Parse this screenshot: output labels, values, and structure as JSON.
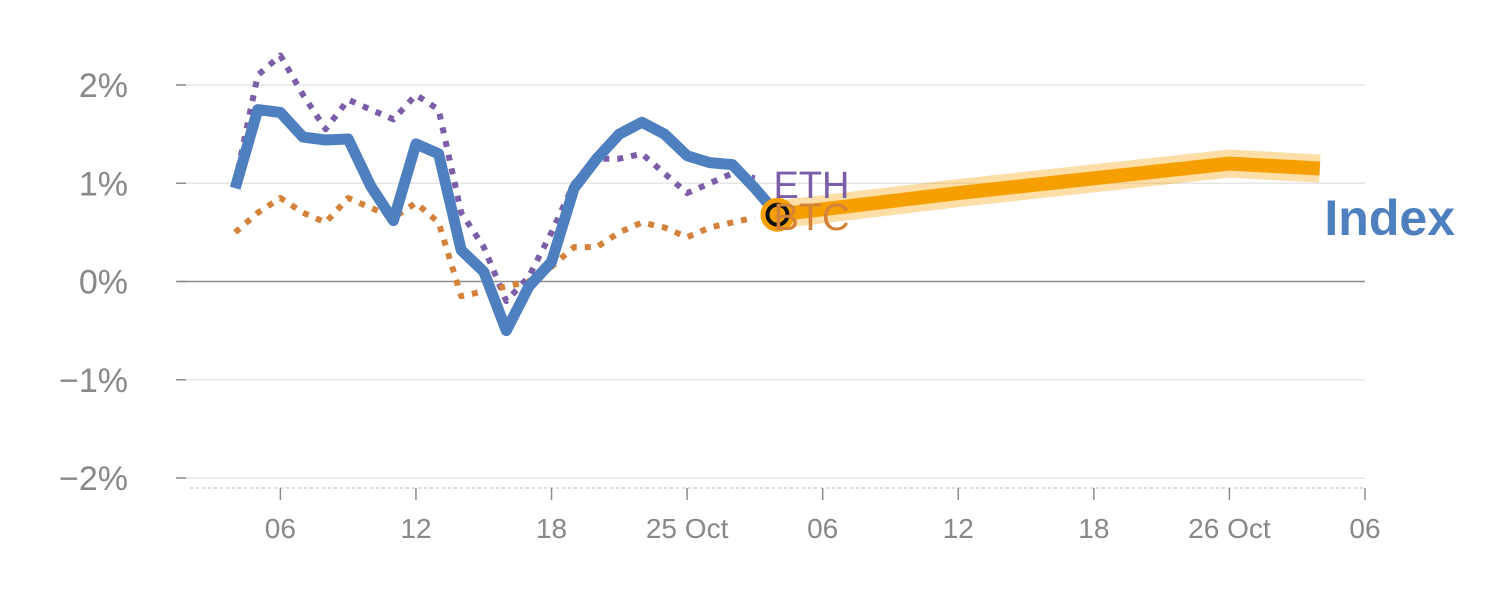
{
  "chart_data": {
    "type": "line",
    "title": "",
    "xlabel": "",
    "ylabel": "",
    "ylim": [
      -2,
      2
    ],
    "y_ticks": [
      {
        "value": 2,
        "label": "2%"
      },
      {
        "value": 1,
        "label": "1%"
      },
      {
        "value": 0,
        "label": "0%"
      },
      {
        "value": -1,
        "label": "−1%"
      },
      {
        "value": -2,
        "label": "−2%"
      }
    ],
    "x_range": [
      "Oct 24 02:00",
      "Oct 26 06:00"
    ],
    "x_ticks": [
      {
        "t": "Oct 24 06:00",
        "label": "06"
      },
      {
        "t": "Oct 24 12:00",
        "label": "12"
      },
      {
        "t": "Oct 24 18:00",
        "label": "18"
      },
      {
        "t": "Oct 25 00:00",
        "label": "25 Oct"
      },
      {
        "t": "Oct 25 06:00",
        "label": "06"
      },
      {
        "t": "Oct 25 12:00",
        "label": "12"
      },
      {
        "t": "Oct 25 18:00",
        "label": "18"
      },
      {
        "t": "Oct 26 00:00",
        "label": "26 Oct"
      },
      {
        "t": "Oct 26 06:00",
        "label": "06"
      }
    ],
    "grid": true,
    "series": [
      {
        "name": "ETH",
        "color": "#7b5ea7",
        "style": "dotted",
        "points": [
          [
            "Oct 24 04:00",
            1.0
          ],
          [
            "Oct 24 05:00",
            2.1
          ],
          [
            "Oct 24 06:00",
            2.3
          ],
          [
            "Oct 24 07:00",
            1.9
          ],
          [
            "Oct 24 08:00",
            1.55
          ],
          [
            "Oct 24 09:00",
            1.85
          ],
          [
            "Oct 24 10:00",
            1.75
          ],
          [
            "Oct 24 11:00",
            1.65
          ],
          [
            "Oct 24 12:00",
            1.9
          ],
          [
            "Oct 24 13:00",
            1.75
          ],
          [
            "Oct 24 14:00",
            0.7
          ],
          [
            "Oct 24 15:00",
            0.35
          ],
          [
            "Oct 24 16:00",
            -0.2
          ],
          [
            "Oct 24 17:00",
            0.05
          ],
          [
            "Oct 24 18:00",
            0.5
          ],
          [
            "Oct 24 19:00",
            1.0
          ],
          [
            "Oct 24 20:00",
            1.25
          ],
          [
            "Oct 24 21:00",
            1.25
          ],
          [
            "Oct 24 22:00",
            1.3
          ],
          [
            "Oct 24 23:00",
            1.1
          ],
          [
            "Oct 25 00:00",
            0.9
          ],
          [
            "Oct 25 01:00",
            1.0
          ],
          [
            "Oct 25 02:00",
            1.1
          ],
          [
            "Oct 25 03:00",
            1.05
          ]
        ]
      },
      {
        "name": "BTC",
        "color": "#d4823a",
        "style": "dotted",
        "points": [
          [
            "Oct 24 04:00",
            0.5
          ],
          [
            "Oct 24 05:00",
            0.7
          ],
          [
            "Oct 24 06:00",
            0.85
          ],
          [
            "Oct 24 07:00",
            0.7
          ],
          [
            "Oct 24 08:00",
            0.6
          ],
          [
            "Oct 24 09:00",
            0.85
          ],
          [
            "Oct 24 10:00",
            0.75
          ],
          [
            "Oct 24 11:00",
            0.65
          ],
          [
            "Oct 24 12:00",
            0.8
          ],
          [
            "Oct 24 13:00",
            0.6
          ],
          [
            "Oct 24 14:00",
            -0.15
          ],
          [
            "Oct 24 15:00",
            -0.1
          ],
          [
            "Oct 24 16:00",
            -0.05
          ],
          [
            "Oct 24 17:00",
            0.0
          ],
          [
            "Oct 24 18:00",
            0.15
          ],
          [
            "Oct 24 19:00",
            0.35
          ],
          [
            "Oct 24 20:00",
            0.35
          ],
          [
            "Oct 24 21:00",
            0.5
          ],
          [
            "Oct 24 22:00",
            0.6
          ],
          [
            "Oct 24 23:00",
            0.55
          ],
          [
            "Oct 25 00:00",
            0.45
          ],
          [
            "Oct 25 01:00",
            0.55
          ],
          [
            "Oct 25 02:00",
            0.6
          ],
          [
            "Oct 25 03:00",
            0.65
          ]
        ]
      },
      {
        "name": "Index",
        "color": "#4e7fbf",
        "style": "solid",
        "points": [
          [
            "Oct 24 04:00",
            0.95
          ],
          [
            "Oct 24 05:00",
            1.75
          ],
          [
            "Oct 24 06:00",
            1.72
          ],
          [
            "Oct 24 07:00",
            1.47
          ],
          [
            "Oct 24 08:00",
            1.44
          ],
          [
            "Oct 24 09:00",
            1.45
          ],
          [
            "Oct 24 10:00",
            0.97
          ],
          [
            "Oct 24 11:00",
            0.62
          ],
          [
            "Oct 24 12:00",
            1.4
          ],
          [
            "Oct 24 13:00",
            1.3
          ],
          [
            "Oct 24 14:00",
            0.32
          ],
          [
            "Oct 24 15:00",
            0.1
          ],
          [
            "Oct 24 16:00",
            -0.5
          ],
          [
            "Oct 24 17:00",
            -0.05
          ],
          [
            "Oct 24 18:00",
            0.2
          ],
          [
            "Oct 24 19:00",
            0.95
          ],
          [
            "Oct 24 20:00",
            1.25
          ],
          [
            "Oct 24 21:00",
            1.5
          ],
          [
            "Oct 24 22:00",
            1.62
          ],
          [
            "Oct 24 23:00",
            1.5
          ],
          [
            "Oct 25 00:00",
            1.28
          ],
          [
            "Oct 25 01:00",
            1.21
          ],
          [
            "Oct 25 02:00",
            1.19
          ],
          [
            "Oct 25 03:00",
            0.95
          ],
          [
            "Oct 25 04:00",
            0.68
          ]
        ]
      }
    ],
    "projection": {
      "color": "#f5a000",
      "points": [
        [
          "Oct 25 04:00",
          0.68
        ],
        [
          "Oct 25 12:00",
          0.9
        ],
        [
          "Oct 25 18:00",
          1.05
        ],
        [
          "Oct 26 00:00",
          1.2
        ],
        [
          "Oct 26 04:00",
          1.15
        ]
      ]
    },
    "current_marker": {
      "t": "Oct 25 04:00",
      "value": 0.68
    }
  }
}
